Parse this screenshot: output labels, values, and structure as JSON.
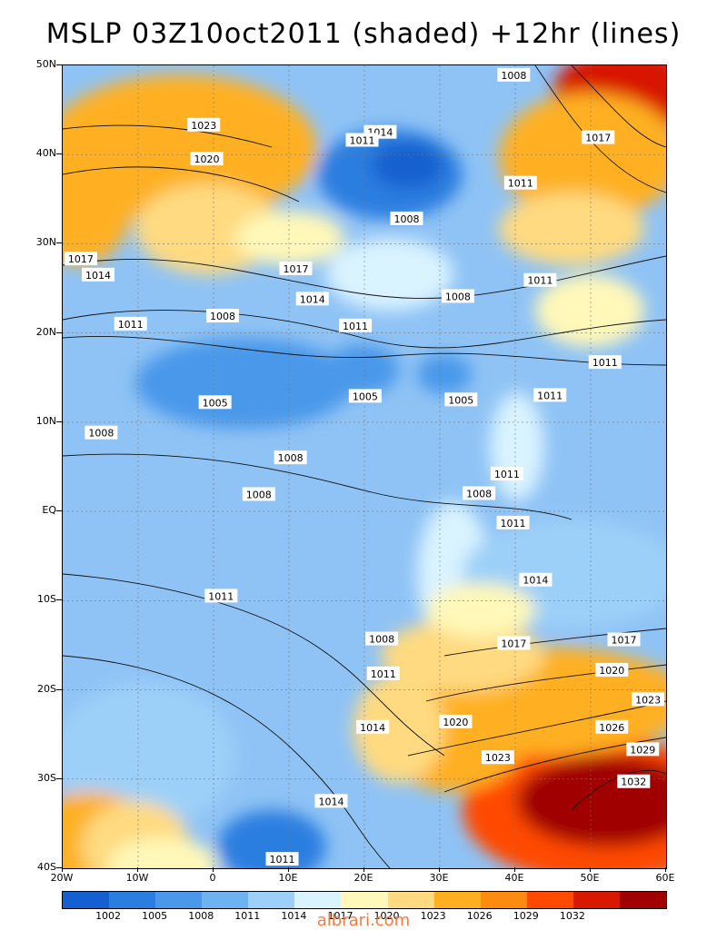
{
  "title": "MSLP 03Z10oct2011 (shaded) +12hr (lines)",
  "lat_labels": [
    "50N",
    "40N",
    "30N",
    "20N",
    "10N",
    "EQ",
    "10S",
    "20S",
    "30S",
    "40S"
  ],
  "lon_labels": [
    "20W",
    "10W",
    "0",
    "10E",
    "20E",
    "30E",
    "40E",
    "50E",
    "60E"
  ],
  "colorbar": {
    "colors": [
      "#1560d0",
      "#2a7ee0",
      "#4a98ea",
      "#6fb2f2",
      "#9dd0f8",
      "#d9f3ff",
      "#fff8b8",
      "#ffda80",
      "#ffb020",
      "#ff8a10",
      "#ff4a00",
      "#d81800",
      "#a00000"
    ],
    "labels": [
      "1002",
      "1005",
      "1008",
      "1011",
      "1014",
      "1017",
      "1020",
      "1023",
      "1026",
      "1029",
      "1032"
    ]
  },
  "contour_labels": [
    {
      "text": "1008",
      "lon": 39.8,
      "lat": 48.9
    },
    {
      "text": "1023",
      "lon": -1.3,
      "lat": 43.3
    },
    {
      "text": "1014",
      "lon": 22.1,
      "lat": 42.5
    },
    {
      "text": "1011",
      "lon": 19.7,
      "lat": 41.6
    },
    {
      "text": "1017",
      "lon": 51.0,
      "lat": 41.9
    },
    {
      "text": "1020",
      "lon": -0.9,
      "lat": 39.5
    },
    {
      "text": "1011",
      "lon": 40.7,
      "lat": 36.8
    },
    {
      "text": "1008",
      "lon": 25.6,
      "lat": 32.8
    },
    {
      "text": "1017",
      "lon": -17.6,
      "lat": 28.3
    },
    {
      "text": "1017",
      "lon": 10.9,
      "lat": 27.2
    },
    {
      "text": "1014",
      "lon": -15.3,
      "lat": 26.5
    },
    {
      "text": "1014",
      "lon": 13.1,
      "lat": 23.8
    },
    {
      "text": "1008",
      "lon": 32.4,
      "lat": 24.1
    },
    {
      "text": "1011",
      "lon": 43.3,
      "lat": 25.9
    },
    {
      "text": "1008",
      "lon": 1.2,
      "lat": 21.9
    },
    {
      "text": "1011",
      "lon": -11.0,
      "lat": 21.0
    },
    {
      "text": "1011",
      "lon": 18.8,
      "lat": 20.8
    },
    {
      "text": "1011",
      "lon": 51.9,
      "lat": 16.7
    },
    {
      "text": "1005",
      "lon": 0.2,
      "lat": 12.2
    },
    {
      "text": "1005",
      "lon": 20.1,
      "lat": 12.9
    },
    {
      "text": "1005",
      "lon": 32.8,
      "lat": 12.5
    },
    {
      "text": "1011",
      "lon": 44.6,
      "lat": 13.0
    },
    {
      "text": "1008",
      "lon": -14.9,
      "lat": 8.8
    },
    {
      "text": "1008",
      "lon": 10.2,
      "lat": 6.0
    },
    {
      "text": "1011",
      "lon": 38.9,
      "lat": 4.2
    },
    {
      "text": "1008",
      "lon": 6.0,
      "lat": 1.9
    },
    {
      "text": "1008",
      "lon": 35.2,
      "lat": 2.0
    },
    {
      "text": "1011",
      "lon": 39.7,
      "lat": -1.3
    },
    {
      "text": "1014",
      "lon": 42.7,
      "lat": -7.7
    },
    {
      "text": "1011",
      "lon": 1.0,
      "lat": -9.5
    },
    {
      "text": "1008",
      "lon": 22.3,
      "lat": -14.3
    },
    {
      "text": "1017",
      "lon": 39.8,
      "lat": -14.8
    },
    {
      "text": "1017",
      "lon": 54.4,
      "lat": -14.4
    },
    {
      "text": "1011",
      "lon": 22.5,
      "lat": -18.2
    },
    {
      "text": "1020",
      "lon": 52.8,
      "lat": -17.8
    },
    {
      "text": "1023",
      "lon": 57.6,
      "lat": -21.1
    },
    {
      "text": "1020",
      "lon": 32.1,
      "lat": -23.6
    },
    {
      "text": "1014",
      "lon": 21.1,
      "lat": -24.2
    },
    {
      "text": "1026",
      "lon": 52.8,
      "lat": -24.2
    },
    {
      "text": "1029",
      "lon": 56.9,
      "lat": -26.7
    },
    {
      "text": "1023",
      "lon": 37.7,
      "lat": -27.6
    },
    {
      "text": "1032",
      "lon": 55.7,
      "lat": -30.3
    },
    {
      "text": "1014",
      "lon": 15.6,
      "lat": -32.5
    },
    {
      "text": "1011",
      "lon": 9.1,
      "lat": -39.0
    }
  ],
  "watermark": "albrari.com"
}
